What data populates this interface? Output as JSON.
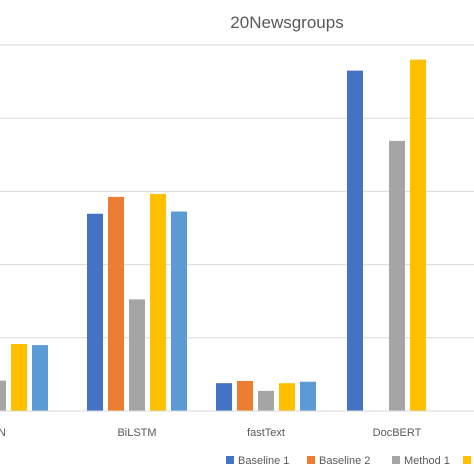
{
  "chart_data": {
    "type": "bar",
    "title": "20Newsgroups",
    "categories": [
      "NN",
      "BiLSTM",
      "fastText",
      "DocBERT"
    ],
    "ylim": [
      0,
      100
    ],
    "grid": true,
    "legend_position": "bottom",
    "series": [
      {
        "name": "Baseline 1",
        "color": "#4472C4",
        "values": [
          null,
          53.9,
          7.6,
          93
        ]
      },
      {
        "name": "Baseline 2",
        "color": "#ED7D31",
        "values": [
          null,
          58.5,
          8.2,
          null
        ]
      },
      {
        "name": "Method 1",
        "color": "#A5A5A5",
        "values": [
          8.3,
          30.5,
          5.5,
          73.8
        ]
      },
      {
        "name": "",
        "color": "#FFC000",
        "values": [
          18.3,
          59.3,
          7.6,
          96
        ]
      },
      {
        "name": "",
        "color": "#5B9BD5",
        "values": [
          18,
          54.5,
          8,
          null
        ]
      }
    ]
  }
}
